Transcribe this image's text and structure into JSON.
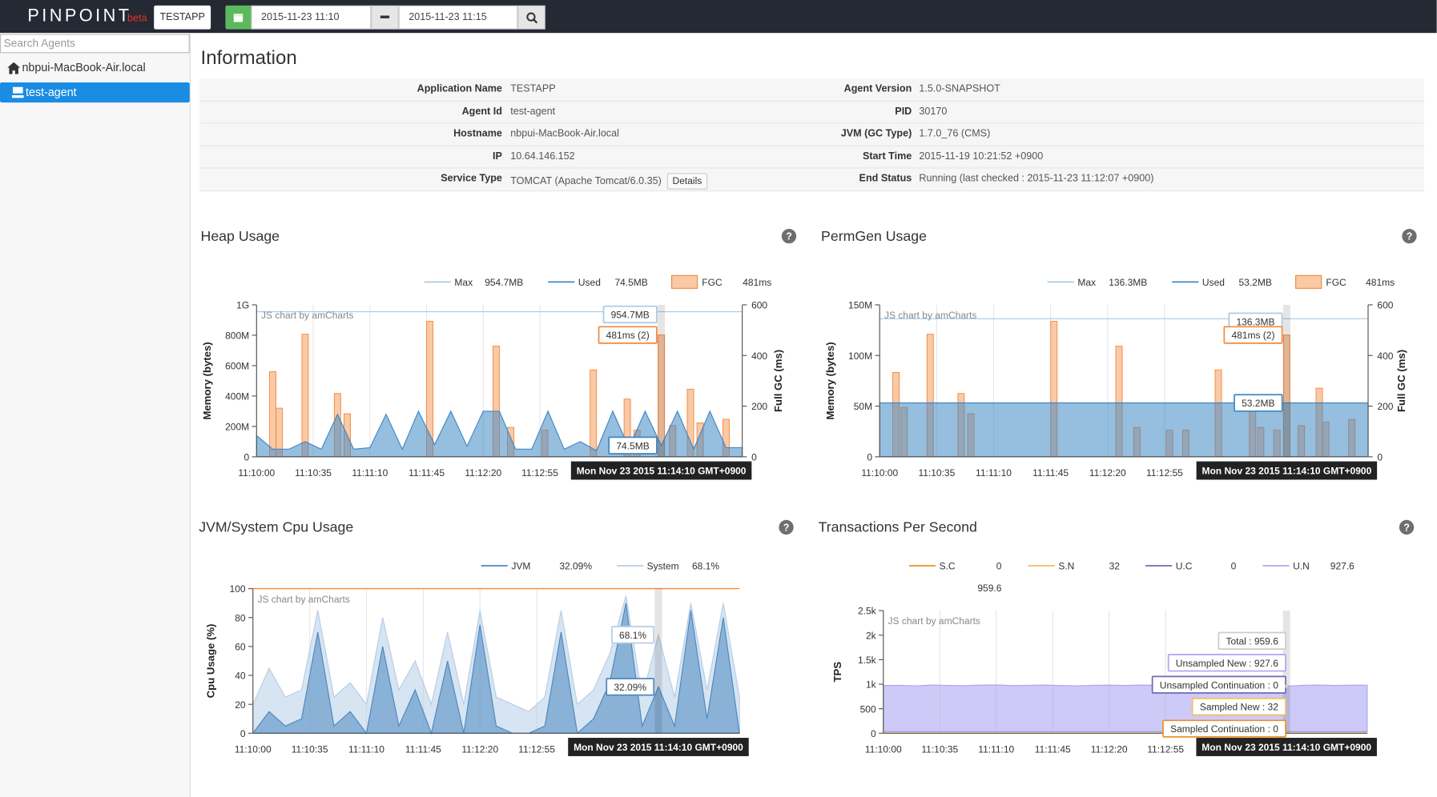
{
  "header": {
    "logo": "PINPOINT",
    "beta": "beta",
    "application": "TESTAPP",
    "from": "2015-11-23 11:10",
    "to": "2015-11-23 11:15"
  },
  "sidebar": {
    "search_placeholder": "Search Agents",
    "host": "nbpui-MacBook-Air.local",
    "agent": "test-agent"
  },
  "info": {
    "title": "Information",
    "details": "Details",
    "rows": [
      [
        "Application Name",
        "TESTAPP",
        "Agent Version",
        "1.5.0-SNAPSHOT"
      ],
      [
        "Agent Id",
        "test-agent",
        "PID",
        "30170"
      ],
      [
        "Hostname",
        "nbpui-MacBook-Air.local",
        "JVM (GC Type)",
        "1.7.0_76 (CMS)"
      ],
      [
        "IP",
        "10.64.146.152",
        "Start Time",
        "2015-11-19 10:21:52 +0900"
      ],
      [
        "Service Type",
        "TOMCAT (Apache Tomcat/6.0.35)",
        "End Status",
        "Running (last checked : 2015-11-23 11:12:07 +0900)"
      ]
    ]
  },
  "help_icon": "?",
  "chart_data": [
    {
      "type": "combo",
      "title": "Heap Usage",
      "ylabel": "Memory (bytes)",
      "y2label": "Full GC (ms)",
      "credit": "JS chart by amCharts",
      "xlim": [
        "11:10:00",
        "11:15:00"
      ],
      "xticks": [
        "11:10:00",
        "11:10:35",
        "11:11:10",
        "11:11:45",
        "11:12:20",
        "11:12:55"
      ],
      "ylim": [
        0,
        1000000000
      ],
      "yticks": [
        0,
        {
          "value": 200000000,
          "label": "200M"
        },
        {
          "value": 400000000,
          "label": "400M"
        },
        {
          "value": 600000000,
          "label": "600M"
        },
        {
          "value": 800000000,
          "label": "800M"
        },
        {
          "value": 1000000000,
          "label": "1G"
        }
      ],
      "y2lim": [
        0,
        600
      ],
      "y2ticks": [
        0,
        200,
        400,
        600
      ],
      "x": [
        "11:10:00",
        "11:10:10",
        "11:10:20",
        "11:10:30",
        "11:10:40",
        "11:10:50",
        "11:11:00",
        "11:11:10",
        "11:11:20",
        "11:11:30",
        "11:11:40",
        "11:11:50",
        "11:12:00",
        "11:12:10",
        "11:12:20",
        "11:12:30",
        "11:12:40",
        "11:12:50",
        "11:13:00",
        "11:13:10",
        "11:13:20",
        "11:13:30",
        "11:13:40",
        "11:13:50",
        "11:14:00",
        "11:14:10",
        "11:14:20",
        "11:14:30",
        "11:14:40",
        "11:14:50",
        "11:15:00"
      ],
      "series": [
        {
          "name": "Max",
          "kind": "line",
          "color": "#a9c9e4",
          "value": 954700000,
          "legend_value": "954.7MB",
          "balloon": "954.7MB"
        },
        {
          "name": "Used",
          "kind": "area",
          "color": "#3f88c5",
          "values": [
            140000000,
            50000000,
            50000000,
            100000000,
            50000000,
            280000000,
            50000000,
            60000000,
            280000000,
            50000000,
            300000000,
            80000000,
            300000000,
            70000000,
            300000000,
            300000000,
            50000000,
            50000000,
            300000000,
            50000000,
            100000000,
            40000000,
            300000000,
            60000000,
            300000000,
            74500000,
            300000000,
            50000000,
            300000000,
            60000000,
            60000000
          ],
          "legend_value": "74.5MB",
          "balloon": "74.5MB"
        },
        {
          "name": "FGC",
          "kind": "bar",
          "axis": "y2",
          "color": "#f5883a",
          "x": [
            "11:10:10",
            "11:10:14",
            "11:10:30",
            "11:10:50",
            "11:10:56",
            "11:11:47",
            "11:12:28",
            "11:12:37",
            "11:12:58",
            "11:13:28",
            "11:13:49",
            "11:13:55",
            "11:14:10",
            "11:14:17",
            "11:14:28",
            "11:14:34",
            "11:14:50"
          ],
          "values": [
            336,
            192,
            484,
            250,
            170,
            535,
            437,
            116,
            105,
            343,
            228,
            105,
            481,
            123,
            267,
            134,
            148
          ],
          "legend_value": "481ms",
          "balloon": "481ms (2)"
        }
      ],
      "cursor": {
        "x": "11:14:10",
        "label": "Mon Nov 23 2015 11:14:10 GMT+0900"
      }
    },
    {
      "type": "combo",
      "title": "PermGen Usage",
      "ylabel": "Memory (bytes)",
      "y2label": "Full GC (ms)",
      "credit": "JS chart by amCharts",
      "xlim": [
        "11:10:00",
        "11:15:00"
      ],
      "xticks": [
        "11:10:00",
        "11:10:35",
        "11:11:10",
        "11:11:45",
        "11:12:20",
        "11:12:55"
      ],
      "ylim": [
        0,
        150000000
      ],
      "yticks": [
        0,
        {
          "value": 50000000,
          "label": "50M"
        },
        {
          "value": 100000000,
          "label": "100M"
        },
        {
          "value": 150000000,
          "label": "150M"
        }
      ],
      "y2lim": [
        0,
        600
      ],
      "y2ticks": [
        0,
        200,
        400,
        600
      ],
      "x": [
        "11:10:00",
        "11:10:10",
        "11:10:20",
        "11:10:30",
        "11:10:40",
        "11:10:50",
        "11:11:00",
        "11:11:10",
        "11:11:20",
        "11:11:30",
        "11:11:40",
        "11:11:50",
        "11:12:00",
        "11:12:10",
        "11:12:20",
        "11:12:30",
        "11:12:40",
        "11:12:50",
        "11:13:00",
        "11:13:10",
        "11:13:20",
        "11:13:30",
        "11:13:40",
        "11:13:50",
        "11:14:00",
        "11:14:10",
        "11:14:20",
        "11:14:30",
        "11:14:40",
        "11:14:50",
        "11:15:00"
      ],
      "series": [
        {
          "name": "Max",
          "kind": "line",
          "color": "#a9c9e4",
          "value": 136300000,
          "legend_value": "136.3MB",
          "balloon": "136.3MB"
        },
        {
          "name": "Used",
          "kind": "area",
          "color": "#3f88c5",
          "values": [
            53200000,
            53200000,
            53200000,
            53200000,
            53200000,
            53200000,
            53200000,
            53200000,
            53200000,
            53200000,
            53200000,
            53200000,
            53200000,
            53200000,
            53200000,
            53200000,
            53200000,
            53200000,
            53200000,
            53200000,
            53200000,
            53200000,
            53200000,
            53200000,
            53200000,
            53200000,
            53200000,
            53200000,
            53200000,
            53200000,
            53200000
          ],
          "legend_value": "53.2MB",
          "balloon": "53.2MB"
        },
        {
          "name": "FGC",
          "kind": "bar",
          "axis": "y2",
          "color": "#f5883a",
          "x": [
            "11:10:10",
            "11:10:15",
            "11:10:31",
            "11:10:50",
            "11:10:56",
            "11:11:47",
            "11:12:27",
            "11:12:38",
            "11:12:58",
            "11:13:08",
            "11:13:28",
            "11:13:49",
            "11:13:54",
            "11:14:04",
            "11:14:10",
            "11:14:19",
            "11:14:30",
            "11:14:34",
            "11:14:50"
          ],
          "values": [
            333,
            195,
            484,
            250,
            170,
            535,
            437,
            116,
            105,
            105,
            343,
            228,
            116,
            105,
            481,
            123,
            271,
            137,
            148
          ],
          "legend_value": "481ms",
          "balloon": "481ms (2)"
        }
      ],
      "cursor": {
        "x": "11:14:10",
        "label": "Mon Nov 23 2015 11:14:10 GMT+0900"
      }
    },
    {
      "type": "combo",
      "title": "JVM/System Cpu Usage",
      "ylabel": "Cpu Usage (%)",
      "credit": "JS chart by amCharts",
      "xlim": [
        "11:10:00",
        "11:15:00"
      ],
      "xticks": [
        "11:10:00",
        "11:10:35",
        "11:11:10",
        "11:11:45",
        "11:12:20",
        "11:12:55"
      ],
      "ylim": [
        0,
        100
      ],
      "yticks": [
        0,
        20,
        40,
        60,
        80,
        100
      ],
      "x": [
        "11:10:00",
        "11:10:10",
        "11:10:20",
        "11:10:30",
        "11:10:40",
        "11:10:50",
        "11:11:00",
        "11:11:10",
        "11:11:20",
        "11:11:30",
        "11:11:40",
        "11:11:50",
        "11:12:00",
        "11:12:10",
        "11:12:20",
        "11:12:30",
        "11:12:40",
        "11:12:50",
        "11:13:00",
        "11:13:10",
        "11:13:20",
        "11:13:30",
        "11:13:40",
        "11:13:50",
        "11:14:00",
        "11:14:10",
        "11:14:20",
        "11:14:30",
        "11:14:40",
        "11:14:50",
        "11:15:00"
      ],
      "series": [
        {
          "name": "JVM",
          "kind": "area",
          "color": "#4b88c0",
          "values": [
            0,
            15,
            5,
            10,
            70,
            5,
            15,
            0,
            60,
            5,
            30,
            0,
            50,
            0,
            75,
            5,
            0,
            0,
            5,
            70,
            0,
            10,
            35,
            90,
            5,
            32.09,
            5,
            85,
            10,
            80,
            0
          ],
          "legend_value": "32.09%",
          "balloon": "32.09%"
        },
        {
          "name": "System",
          "kind": "area",
          "color": "#b7cde6",
          "values": [
            20,
            45,
            25,
            30,
            85,
            25,
            35,
            20,
            80,
            30,
            50,
            20,
            70,
            20,
            85,
            25,
            20,
            15,
            25,
            85,
            20,
            30,
            55,
            95,
            25,
            68.1,
            25,
            90,
            30,
            90,
            25
          ],
          "legend_value": "68.1%",
          "balloon": "68.1%"
        }
      ],
      "cursor": {
        "x": "11:14:10",
        "label": "Mon Nov 23 2015 11:14:10 GMT+0900"
      }
    },
    {
      "type": "combo",
      "title": "Transactions Per Second",
      "ylabel": "TPS",
      "credit": "JS chart by amCharts",
      "stacked": true,
      "xlim": [
        "11:10:00",
        "11:15:00"
      ],
      "xticks": [
        "11:10:00",
        "11:10:35",
        "11:11:10",
        "11:11:45",
        "11:12:20",
        "11:12:55"
      ],
      "ylim": [
        0,
        2500
      ],
      "yticks": [
        0,
        500,
        {
          "value": 1000,
          "label": "1k"
        },
        {
          "value": 1500,
          "label": "1.5k"
        },
        {
          "value": 2000,
          "label": "2k"
        },
        {
          "value": 2500,
          "label": "2.5k"
        }
      ],
      "x": [
        "11:10:00",
        "11:10:10",
        "11:10:20",
        "11:10:30",
        "11:10:40",
        "11:10:50",
        "11:11:00",
        "11:11:10",
        "11:11:20",
        "11:11:30",
        "11:11:40",
        "11:11:50",
        "11:12:00",
        "11:12:10",
        "11:12:20",
        "11:12:30",
        "11:12:40",
        "11:12:50",
        "11:13:00",
        "11:13:10",
        "11:13:20",
        "11:13:30",
        "11:13:40",
        "11:13:50",
        "11:14:00",
        "11:14:10",
        "11:14:20",
        "11:14:30",
        "11:14:40",
        "11:14:50",
        "11:15:00"
      ],
      "series": [
        {
          "name": "S.C",
          "kind": "area",
          "color": "#e8912d",
          "values": [
            0,
            0,
            0,
            0,
            0,
            0,
            0,
            0,
            0,
            0,
            0,
            0,
            0,
            0,
            0,
            0,
            0,
            0,
            0,
            0,
            0,
            0,
            0,
            0,
            0,
            0,
            0,
            0,
            0,
            0,
            0
          ],
          "legend_value": "0",
          "balloon": "Sampled Continuation : 0"
        },
        {
          "name": "S.N",
          "kind": "area",
          "color": "#f2bf5e",
          "values": [
            32,
            32,
            32,
            32,
            32,
            32,
            32,
            32,
            32,
            32,
            32,
            32,
            32,
            32,
            32,
            32,
            32,
            32,
            32,
            32,
            32,
            32,
            32,
            32,
            32,
            32,
            32,
            32,
            32,
            32,
            32
          ],
          "legend_value": "32",
          "balloon": "Sampled New : 32"
        },
        {
          "name": "U.C",
          "kind": "area",
          "color": "#6c69b8",
          "values": [
            0,
            0,
            0,
            0,
            0,
            0,
            0,
            0,
            0,
            0,
            0,
            0,
            0,
            0,
            0,
            0,
            0,
            0,
            0,
            0,
            0,
            0,
            0,
            0,
            0,
            0,
            0,
            0,
            0,
            0,
            0
          ],
          "legend_value": "0",
          "balloon": "Unsampled Continuation : 0"
        },
        {
          "name": "U.N",
          "kind": "area",
          "color": "#ada6f2",
          "values": [
            940,
            945,
            935,
            950,
            942,
            938,
            948,
            952,
            940,
            945,
            950,
            940,
            935,
            945,
            948,
            942,
            950,
            946,
            940,
            944,
            948,
            950,
            940,
            945,
            935,
            927.6,
            945,
            950,
            942,
            948,
            946
          ],
          "legend_value": "927.6",
          "balloon": "Unsampled New : 927.6"
        },
        {
          "kind": "total",
          "color": "#cccccc",
          "value": 959.6,
          "legend_value": "959.6",
          "balloon": "Total : 959.6"
        }
      ],
      "cursor": {
        "x": "11:14:10",
        "label": "Mon Nov 23 2015 11:14:10 GMT+0900"
      }
    }
  ]
}
